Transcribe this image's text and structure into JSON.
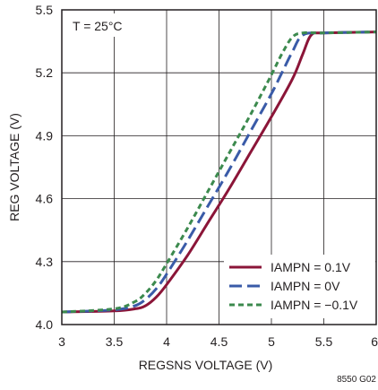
{
  "chart_data": {
    "type": "line",
    "xlabel": "REGSNS VOLTAGE (V)",
    "ylabel": "REG VOLTAGE (V)",
    "xlim": [
      3,
      6
    ],
    "ylim": [
      4.0,
      5.5
    ],
    "x_ticks": [
      "3",
      "3.5",
      "4",
      "4.5",
      "5",
      "5.5",
      "6"
    ],
    "y_ticks": [
      "4.0",
      "4.3",
      "4.6",
      "4.9",
      "5.2",
      "5.5"
    ],
    "grid": true,
    "legend_position": "bottom-right",
    "annotation": "T = 25°C",
    "figure_code": "8550 G02",
    "series": [
      {
        "name": "IAMPN = 0.1V",
        "color": "#8b1538",
        "dash": "solid",
        "x": [
          3.0,
          3.5,
          3.7,
          3.8,
          3.9,
          4.0,
          4.2,
          4.4,
          4.6,
          4.8,
          5.0,
          5.2,
          5.3,
          5.38,
          5.5,
          6.0
        ],
        "y": [
          4.06,
          4.065,
          4.075,
          4.09,
          4.13,
          4.19,
          4.33,
          4.49,
          4.65,
          4.82,
          4.99,
          5.17,
          5.29,
          5.38,
          5.39,
          5.395
        ]
      },
      {
        "name": "IAMPN = 0V",
        "color": "#3a5ba8",
        "dash": "long-dash",
        "x": [
          3.0,
          3.5,
          3.7,
          3.8,
          3.9,
          4.0,
          4.2,
          4.4,
          4.6,
          4.8,
          5.0,
          5.1,
          5.2,
          5.3,
          5.5,
          6.0
        ],
        "y": [
          4.06,
          4.07,
          4.09,
          4.12,
          4.17,
          4.24,
          4.4,
          4.57,
          4.74,
          4.92,
          5.1,
          5.2,
          5.3,
          5.38,
          5.39,
          5.395
        ]
      },
      {
        "name": "IAMPN = −0.1V",
        "color": "#3c8a4e",
        "dash": "short-dash",
        "x": [
          3.0,
          3.5,
          3.7,
          3.8,
          3.9,
          4.0,
          4.2,
          4.4,
          4.6,
          4.8,
          5.0,
          5.1,
          5.2,
          5.3,
          5.5,
          6.0
        ],
        "y": [
          4.06,
          4.075,
          4.11,
          4.15,
          4.21,
          4.29,
          4.46,
          4.64,
          4.82,
          5.0,
          5.19,
          5.29,
          5.37,
          5.39,
          5.39,
          5.395
        ]
      }
    ]
  }
}
